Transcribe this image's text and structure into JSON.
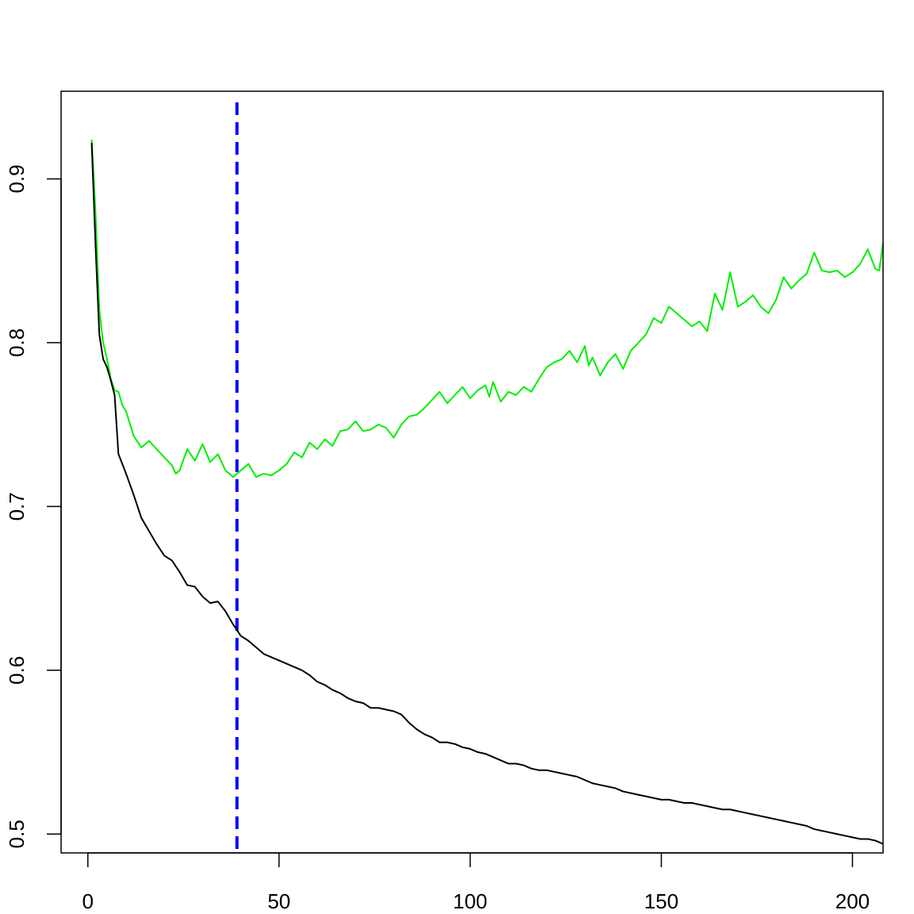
{
  "chart_data": {
    "type": "line",
    "title": "",
    "xlabel": "",
    "ylabel": "",
    "xlim": [
      -7,
      208
    ],
    "ylim": [
      0.4885,
      0.9535
    ],
    "x_ticks": [
      0,
      50,
      100,
      150,
      200
    ],
    "x_tick_labels": [
      "0",
      "50",
      "100",
      "150",
      "200"
    ],
    "y_ticks": [
      0.5,
      0.6,
      0.7,
      0.8,
      0.9
    ],
    "y_tick_labels": [
      "0.5",
      "0.6",
      "0.7",
      "0.8",
      "0.9"
    ],
    "grid": false,
    "series": [
      {
        "color": "#00ee00",
        "points": [
          [
            1,
            0.924
          ],
          [
            2,
            0.88
          ],
          [
            3,
            0.82
          ],
          [
            4,
            0.8
          ],
          [
            5,
            0.79
          ],
          [
            6,
            0.778
          ],
          [
            7,
            0.771
          ],
          [
            8,
            0.77
          ],
          [
            9,
            0.762
          ],
          [
            10,
            0.758
          ],
          [
            12,
            0.743
          ],
          [
            14,
            0.736
          ],
          [
            16,
            0.74
          ],
          [
            18,
            0.735
          ],
          [
            20,
            0.73
          ],
          [
            22,
            0.725
          ],
          [
            23,
            0.72
          ],
          [
            24,
            0.722
          ],
          [
            26,
            0.735
          ],
          [
            28,
            0.728
          ],
          [
            30,
            0.738
          ],
          [
            32,
            0.727
          ],
          [
            34,
            0.732
          ],
          [
            36,
            0.722
          ],
          [
            38,
            0.718
          ],
          [
            40,
            0.722
          ],
          [
            42,
            0.726
          ],
          [
            44,
            0.718
          ],
          [
            46,
            0.72
          ],
          [
            48,
            0.719
          ],
          [
            50,
            0.722
          ],
          [
            52,
            0.726
          ],
          [
            54,
            0.733
          ],
          [
            56,
            0.73
          ],
          [
            58,
            0.739
          ],
          [
            60,
            0.735
          ],
          [
            62,
            0.741
          ],
          [
            64,
            0.737
          ],
          [
            66,
            0.746
          ],
          [
            68,
            0.747
          ],
          [
            70,
            0.752
          ],
          [
            72,
            0.746
          ],
          [
            74,
            0.747
          ],
          [
            76,
            0.75
          ],
          [
            78,
            0.748
          ],
          [
            80,
            0.742
          ],
          [
            82,
            0.75
          ],
          [
            84,
            0.755
          ],
          [
            86,
            0.756
          ],
          [
            88,
            0.76
          ],
          [
            90,
            0.765
          ],
          [
            92,
            0.77
          ],
          [
            94,
            0.763
          ],
          [
            96,
            0.768
          ],
          [
            98,
            0.773
          ],
          [
            100,
            0.766
          ],
          [
            102,
            0.771
          ],
          [
            104,
            0.774
          ],
          [
            105,
            0.767
          ],
          [
            106,
            0.776
          ],
          [
            108,
            0.764
          ],
          [
            110,
            0.77
          ],
          [
            112,
            0.768
          ],
          [
            114,
            0.773
          ],
          [
            116,
            0.77
          ],
          [
            118,
            0.778
          ],
          [
            120,
            0.785
          ],
          [
            122,
            0.788
          ],
          [
            124,
            0.79
          ],
          [
            126,
            0.795
          ],
          [
            128,
            0.788
          ],
          [
            130,
            0.798
          ],
          [
            131,
            0.786
          ],
          [
            132,
            0.791
          ],
          [
            134,
            0.78
          ],
          [
            136,
            0.788
          ],
          [
            138,
            0.793
          ],
          [
            140,
            0.784
          ],
          [
            142,
            0.795
          ],
          [
            144,
            0.8
          ],
          [
            146,
            0.805
          ],
          [
            148,
            0.815
          ],
          [
            150,
            0.812
          ],
          [
            152,
            0.822
          ],
          [
            154,
            0.818
          ],
          [
            156,
            0.814
          ],
          [
            158,
            0.81
          ],
          [
            160,
            0.813
          ],
          [
            162,
            0.807
          ],
          [
            164,
            0.83
          ],
          [
            166,
            0.82
          ],
          [
            168,
            0.843
          ],
          [
            170,
            0.822
          ],
          [
            172,
            0.825
          ],
          [
            174,
            0.829
          ],
          [
            176,
            0.822
          ],
          [
            178,
            0.818
          ],
          [
            180,
            0.826
          ],
          [
            182,
            0.84
          ],
          [
            184,
            0.833
          ],
          [
            186,
            0.838
          ],
          [
            188,
            0.842
          ],
          [
            190,
            0.855
          ],
          [
            192,
            0.844
          ],
          [
            194,
            0.843
          ],
          [
            196,
            0.844
          ],
          [
            198,
            0.84
          ],
          [
            200,
            0.843
          ],
          [
            202,
            0.848
          ],
          [
            204,
            0.857
          ],
          [
            206,
            0.845
          ],
          [
            207,
            0.844
          ],
          [
            208,
            0.861
          ]
        ]
      },
      {
        "color": "#000000",
        "points": [
          [
            1,
            0.922
          ],
          [
            2,
            0.86
          ],
          [
            3,
            0.805
          ],
          [
            4,
            0.79
          ],
          [
            5,
            0.785
          ],
          [
            6,
            0.777
          ],
          [
            7,
            0.768
          ],
          [
            8,
            0.732
          ],
          [
            10,
            0.72
          ],
          [
            12,
            0.707
          ],
          [
            14,
            0.693
          ],
          [
            16,
            0.685
          ],
          [
            18,
            0.677
          ],
          [
            20,
            0.67
          ],
          [
            22,
            0.667
          ],
          [
            24,
            0.66
          ],
          [
            26,
            0.652
          ],
          [
            28,
            0.651
          ],
          [
            30,
            0.645
          ],
          [
            32,
            0.641
          ],
          [
            34,
            0.642
          ],
          [
            36,
            0.636
          ],
          [
            38,
            0.628
          ],
          [
            40,
            0.621
          ],
          [
            42,
            0.618
          ],
          [
            44,
            0.614
          ],
          [
            46,
            0.61
          ],
          [
            48,
            0.608
          ],
          [
            50,
            0.606
          ],
          [
            52,
            0.604
          ],
          [
            54,
            0.602
          ],
          [
            56,
            0.6
          ],
          [
            58,
            0.597
          ],
          [
            60,
            0.593
          ],
          [
            62,
            0.591
          ],
          [
            64,
            0.588
          ],
          [
            66,
            0.586
          ],
          [
            68,
            0.583
          ],
          [
            70,
            0.581
          ],
          [
            72,
            0.58
          ],
          [
            74,
            0.577
          ],
          [
            76,
            0.577
          ],
          [
            78,
            0.576
          ],
          [
            80,
            0.575
          ],
          [
            82,
            0.573
          ],
          [
            84,
            0.568
          ],
          [
            86,
            0.564
          ],
          [
            88,
            0.561
          ],
          [
            90,
            0.559
          ],
          [
            92,
            0.556
          ],
          [
            94,
            0.556
          ],
          [
            96,
            0.555
          ],
          [
            98,
            0.553
          ],
          [
            100,
            0.552
          ],
          [
            102,
            0.55
          ],
          [
            104,
            0.549
          ],
          [
            106,
            0.547
          ],
          [
            108,
            0.545
          ],
          [
            110,
            0.543
          ],
          [
            112,
            0.543
          ],
          [
            114,
            0.542
          ],
          [
            116,
            0.54
          ],
          [
            118,
            0.539
          ],
          [
            120,
            0.539
          ],
          [
            122,
            0.538
          ],
          [
            124,
            0.537
          ],
          [
            126,
            0.536
          ],
          [
            128,
            0.535
          ],
          [
            130,
            0.533
          ],
          [
            132,
            0.531
          ],
          [
            134,
            0.53
          ],
          [
            136,
            0.529
          ],
          [
            138,
            0.528
          ],
          [
            140,
            0.526
          ],
          [
            142,
            0.525
          ],
          [
            144,
            0.524
          ],
          [
            146,
            0.523
          ],
          [
            148,
            0.522
          ],
          [
            150,
            0.521
          ],
          [
            152,
            0.521
          ],
          [
            154,
            0.52
          ],
          [
            156,
            0.519
          ],
          [
            158,
            0.519
          ],
          [
            160,
            0.518
          ],
          [
            162,
            0.517
          ],
          [
            164,
            0.516
          ],
          [
            166,
            0.515
          ],
          [
            168,
            0.515
          ],
          [
            170,
            0.514
          ],
          [
            172,
            0.513
          ],
          [
            174,
            0.512
          ],
          [
            176,
            0.511
          ],
          [
            178,
            0.51
          ],
          [
            180,
            0.509
          ],
          [
            182,
            0.508
          ],
          [
            184,
            0.507
          ],
          [
            186,
            0.506
          ],
          [
            188,
            0.505
          ],
          [
            190,
            0.503
          ],
          [
            192,
            0.502
          ],
          [
            194,
            0.501
          ],
          [
            196,
            0.5
          ],
          [
            198,
            0.499
          ],
          [
            200,
            0.498
          ],
          [
            202,
            0.497
          ],
          [
            204,
            0.497
          ],
          [
            206,
            0.496
          ],
          [
            207,
            0.495
          ],
          [
            208,
            0.494
          ]
        ]
      }
    ],
    "reference_lines": [
      {
        "orientation": "vertical",
        "x": 39,
        "color": "#0000ff",
        "style": "dashed"
      }
    ]
  }
}
